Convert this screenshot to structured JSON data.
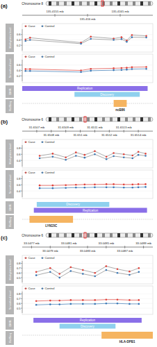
{
  "chart_data": [
    {
      "type": "line",
      "title": "(a)",
      "subtitle": "Chromosome 8",
      "legend": "top-left",
      "xlim": [
        135.415,
        135.417
      ],
      "xticks": [
        {
          "value": 135.4155,
          "label": "135.4155 mb"
        },
        {
          "value": 135.416,
          "label": "135.416 mb"
        },
        {
          "value": 135.4165,
          "label": "135.4165 mb"
        }
      ],
      "tracks": [
        {
          "label": "Methylation level",
          "ylim": [
            0,
            0.8
          ],
          "yticks": [
            0.2,
            0.4,
            0.6
          ],
          "series": [
            {
              "name": "Case",
              "color": "#e0413a",
              "marker": "circle",
              "x": [
                135.41505,
                135.41512,
                135.4159,
                135.41605,
                135.4164,
                135.41652,
                135.4166,
                135.41668,
                135.4169
              ],
              "values": [
                0.42,
                0.48,
                0.3,
                0.52,
                0.45,
                0.5,
                0.38,
                0.58,
                0.55
              ]
            },
            {
              "name": "Control",
              "color": "#3a78b5",
              "marker": "circle",
              "x": [
                135.41505,
                135.41512,
                135.4159,
                135.41605,
                135.4164,
                135.41652,
                135.4166,
                135.41668,
                135.4169
              ],
              "values": [
                0.36,
                0.4,
                0.26,
                0.44,
                0.4,
                0.43,
                0.33,
                0.5,
                0.49
              ]
            }
          ]
        },
        {
          "label": "Smoothed level",
          "ylim": [
            0,
            0.8
          ],
          "yticks": [
            0.2,
            0.4,
            0.6
          ],
          "series": [
            {
              "name": "Case",
              "color": "#e0413a",
              "marker": "circle",
              "x": [
                135.41505,
                135.41512,
                135.4159,
                135.41605,
                135.4164,
                135.41652,
                135.4166,
                135.41668,
                135.4169
              ],
              "values": [
                0.45,
                0.45,
                0.4,
                0.46,
                0.48,
                0.49,
                0.5,
                0.52,
                0.53
              ]
            },
            {
              "name": "Control",
              "color": "#3a78b5",
              "marker": "circle",
              "x": [
                135.41505,
                135.41512,
                135.4159,
                135.41605,
                135.4164,
                135.41652,
                135.4166,
                135.41668,
                135.4169
              ],
              "values": [
                0.38,
                0.38,
                0.34,
                0.39,
                0.41,
                0.42,
                0.43,
                0.45,
                0.46
              ]
            }
          ]
        }
      ],
      "region_label": "DMR",
      "regions": [
        {
          "name": "Replication",
          "color": "#8a6fe8",
          "start": 135.415,
          "end": 135.41692
        },
        {
          "name": "Discovery",
          "color": "#8fd0ee",
          "start": 135.4158,
          "end": 135.4168
        }
      ],
      "gene_label": "RefSeq",
      "genes": [
        {
          "name": "ncB86",
          "color": "#f5b461",
          "start": 135.4164,
          "end": 135.4166
        }
      ]
    },
    {
      "type": "line",
      "title": "(b)",
      "subtitle": "Chromosome 6",
      "legend": "top-left",
      "xlim": [
        31.6506,
        31.6515
      ],
      "xticks": [
        {
          "value": 31.6507,
          "label": "31.6507 mb"
        },
        {
          "value": 31.6508,
          "label": "31.6508 mb"
        },
        {
          "value": 31.6509,
          "label": "31.6509 mb"
        },
        {
          "value": 31.651,
          "label": "31.651 mb"
        },
        {
          "value": 31.6511,
          "label": "31.6511 mb"
        },
        {
          "value": 31.6512,
          "label": "31.6512 mb"
        },
        {
          "value": 31.6513,
          "label": "31.6513 mb"
        },
        {
          "value": 31.6514,
          "label": "31.6514 mb"
        }
      ],
      "tracks": [
        {
          "label": "Methylation level",
          "ylim": [
            0.2,
            0.9
          ],
          "yticks": [
            0.4,
            0.6,
            0.8
          ],
          "series": [
            {
              "name": "Case",
              "color": "#e0413a",
              "marker": "circle",
              "x": [
                31.65072,
                31.65081,
                31.6509,
                31.65097,
                31.65103,
                31.6511,
                31.65118,
                31.65123,
                31.6513,
                31.65136,
                31.6514,
                31.65145
              ],
              "values": [
                0.55,
                0.62,
                0.5,
                0.66,
                0.58,
                0.7,
                0.52,
                0.64,
                0.6,
                0.56,
                0.68,
                0.62
              ]
            },
            {
              "name": "Control",
              "color": "#3a78b5",
              "marker": "circle",
              "x": [
                31.65072,
                31.65081,
                31.6509,
                31.65097,
                31.65103,
                31.6511,
                31.65118,
                31.65123,
                31.6513,
                31.65136,
                31.6514,
                31.65145
              ],
              "values": [
                0.47,
                0.52,
                0.42,
                0.55,
                0.49,
                0.6,
                0.44,
                0.54,
                0.5,
                0.47,
                0.58,
                0.55
              ]
            }
          ]
        },
        {
          "label": "Smoothed level",
          "ylim": [
            0.2,
            0.9
          ],
          "yticks": [
            0.4,
            0.6,
            0.8
          ],
          "series": [
            {
              "name": "Case",
              "color": "#e0413a",
              "marker": "circle",
              "x": [
                31.65072,
                31.65081,
                31.6509,
                31.65097,
                31.65103,
                31.6511,
                31.65118,
                31.65123,
                31.6513,
                31.65136,
                31.6514,
                31.65145
              ],
              "values": [
                0.58,
                0.58,
                0.59,
                0.6,
                0.61,
                0.61,
                0.62,
                0.62,
                0.61,
                0.61,
                0.62,
                0.62
              ]
            },
            {
              "name": "Control",
              "color": "#3a78b5",
              "marker": "circle",
              "x": [
                31.65072,
                31.65081,
                31.6509,
                31.65097,
                31.65103,
                31.6511,
                31.65118,
                31.65123,
                31.6513,
                31.65136,
                31.6514,
                31.65145
              ],
              "values": [
                0.49,
                0.49,
                0.5,
                0.51,
                0.51,
                0.52,
                0.52,
                0.52,
                0.51,
                0.51,
                0.52,
                0.53
              ]
            }
          ]
        }
      ],
      "region_label": "DMR",
      "regions": [
        {
          "name": "Discovery",
          "color": "#8fd0ee",
          "start": 31.6507,
          "end": 31.6512
        },
        {
          "name": "Replication",
          "color": "#8a6fe8",
          "start": 31.65068,
          "end": 31.65146
        }
      ],
      "gene_label": "RefSeq",
      "genes": [
        {
          "name": "LY6G5C",
          "color": "#f5b461",
          "start": 31.65065,
          "end": 31.65095
        }
      ]
    },
    {
      "type": "line",
      "title": "(c)",
      "subtitle": "Chromosome 6",
      "legend": "top-left",
      "xlim": [
        33.0476,
        33.049
      ],
      "xticks": [
        {
          "value": 33.0477,
          "label": "33.0477 mb"
        },
        {
          "value": 33.0479,
          "label": "33.0479 mb"
        },
        {
          "value": 33.0481,
          "label": "33.0481 mb"
        },
        {
          "value": 33.0483,
          "label": "33.0483 mb"
        },
        {
          "value": 33.0485,
          "label": "33.0485 mb"
        },
        {
          "value": 33.0487,
          "label": "33.0487 mb"
        },
        {
          "value": 33.0489,
          "label": "33.0489 mb"
        }
      ],
      "tracks": [
        {
          "label": "Methylation level",
          "ylim": [
            0.4,
            0.85
          ],
          "yticks": [
            0.5,
            0.6,
            0.7,
            0.8
          ],
          "series": [
            {
              "name": "Case",
              "color": "#e0413a",
              "marker": "circle",
              "x": [
                33.04775,
                33.0479,
                33.048,
                33.04812,
                33.04825,
                33.04838,
                33.0485,
                33.04862,
                33.04875,
                33.04885
              ],
              "values": [
                0.62,
                0.7,
                0.58,
                0.72,
                0.66,
                0.6,
                0.74,
                0.68,
                0.63,
                0.7
              ]
            },
            {
              "name": "Control",
              "color": "#3a78b5",
              "marker": "circle",
              "x": [
                33.04775,
                33.0479,
                33.048,
                33.04812,
                33.04825,
                33.04838,
                33.0485,
                33.04862,
                33.04875,
                33.04885
              ],
              "values": [
                0.55,
                0.62,
                0.5,
                0.64,
                0.58,
                0.53,
                0.66,
                0.6,
                0.56,
                0.62
              ]
            }
          ]
        },
        {
          "label": "Smoothed level",
          "ylim": [
            0.4,
            0.85
          ],
          "yticks": [
            0.5,
            0.6,
            0.7,
            0.8
          ],
          "series": [
            {
              "name": "Case",
              "color": "#e0413a",
              "marker": "circle",
              "x": [
                33.04775,
                33.0479,
                33.048,
                33.04812,
                33.04825,
                33.04838,
                33.0485,
                33.04862,
                33.04875,
                33.04885
              ],
              "values": [
                0.65,
                0.66,
                0.66,
                0.67,
                0.67,
                0.67,
                0.68,
                0.68,
                0.67,
                0.67
              ]
            },
            {
              "name": "Control",
              "color": "#3a78b5",
              "marker": "circle",
              "x": [
                33.04775,
                33.0479,
                33.048,
                33.04812,
                33.04825,
                33.04838,
                33.0485,
                33.04862,
                33.04875,
                33.04885
              ],
              "values": [
                0.57,
                0.58,
                0.58,
                0.59,
                0.59,
                0.59,
                0.6,
                0.6,
                0.59,
                0.59
              ]
            }
          ]
        }
      ],
      "region_label": "DMR",
      "regions": [
        {
          "name": "Replication",
          "color": "#8a6fe8",
          "start": 33.04772,
          "end": 33.04888
        },
        {
          "name": "Discovery",
          "color": "#8fd0ee",
          "start": 33.048,
          "end": 33.0486
        }
      ],
      "gene_label": "RefSeq",
      "genes": [
        {
          "name": "HLA-DPB1",
          "color": "#f5b461",
          "start": 33.04845,
          "end": 33.049
        }
      ]
    }
  ]
}
